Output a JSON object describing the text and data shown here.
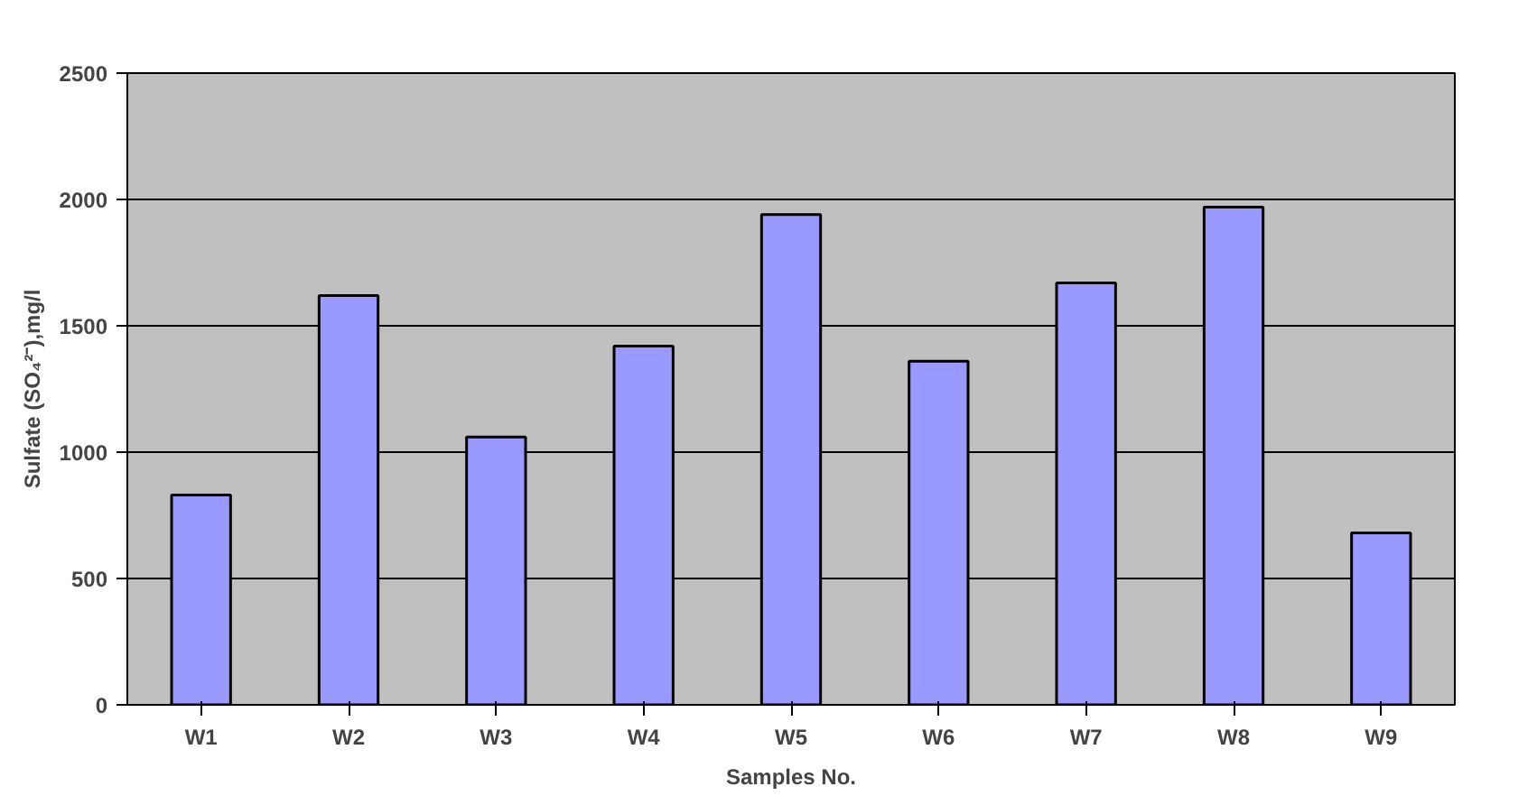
{
  "chart_data": {
    "type": "bar",
    "xlabel": "Samples No.",
    "ylabel": "Sulfate (SO₄²⁻),mg/l",
    "categories": [
      "W1",
      "W2",
      "W3",
      "W4",
      "W5",
      "W6",
      "W7",
      "W8",
      "W9"
    ],
    "values": [
      830,
      1620,
      1060,
      1420,
      1940,
      1360,
      1670,
      1970,
      680
    ],
    "color": "#9999ff",
    "ylim": [
      0,
      2500
    ],
    "yticks": [
      0,
      500,
      1000,
      1500,
      2000,
      2500
    ],
    "grid": "y"
  }
}
